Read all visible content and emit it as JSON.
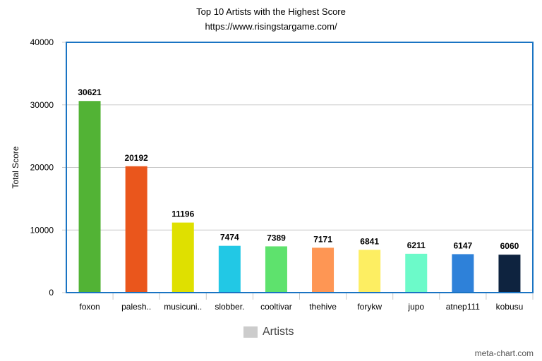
{
  "title": "Top 10 Artists with the Highest Score",
  "subtitle": "https://www.risingstargame.com/",
  "credit": "meta-chart.com",
  "chart_data": {
    "type": "bar",
    "title": "Top 10 Artists with the Highest Score",
    "subtitle": "https://www.risingstargame.com/",
    "xlabel": "",
    "ylabel": "Total Score",
    "ylim": [
      0,
      40000
    ],
    "yticks": [
      0,
      10000,
      20000,
      30000,
      40000
    ],
    "grid": true,
    "legend_position": "bottom",
    "categories": [
      "foxon",
      "palesh..",
      "musicuni..",
      "slobber.",
      "cooltivar",
      "thehive",
      "forykw",
      "jupo",
      "atnep111",
      "kobusu"
    ],
    "series": [
      {
        "name": "Artists",
        "values": [
          30621,
          20192,
          11196,
          7474,
          7389,
          7171,
          6841,
          6211,
          6147,
          6060
        ],
        "colors": [
          "#52b335",
          "#ea561c",
          "#dfe000",
          "#22c8e5",
          "#5ee26d",
          "#fe9654",
          "#fdee62",
          "#6cfac9",
          "#2e81d9",
          "#0e233f"
        ]
      }
    ],
    "frame_color": "#1a74c3",
    "legend_swatch_color": "#cccccc"
  }
}
